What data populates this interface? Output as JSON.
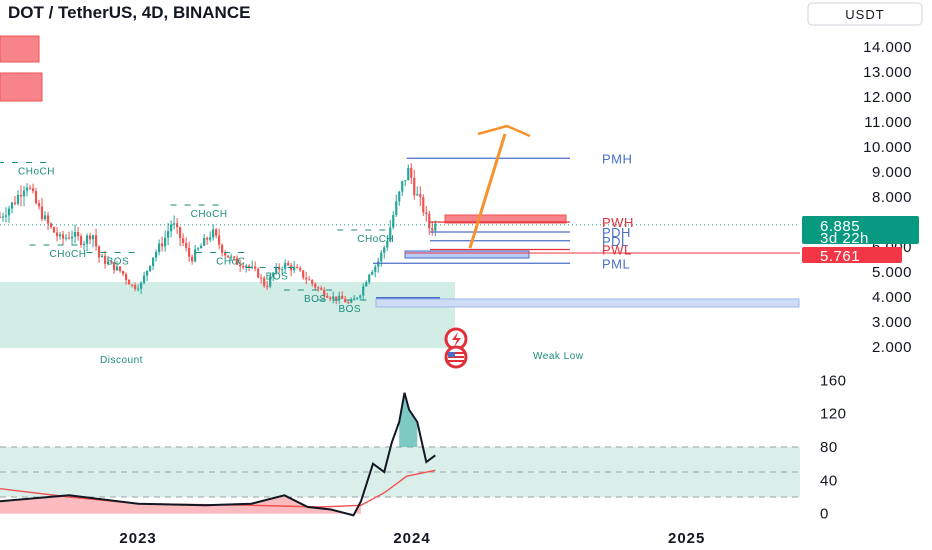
{
  "chart_data": {
    "type": "candlestick",
    "title": "DOT / TetherUS, 4D, BINANCE",
    "currency": "USDT",
    "price_axis": {
      "min": 1.0,
      "max": 15.0,
      "ticks": [
        "14.000",
        "13.000",
        "12.000",
        "11.000",
        "10.000",
        "9.000",
        "8.000",
        "7.000",
        "6.000",
        "5.000",
        "4.000",
        "3.000",
        "2.000"
      ],
      "tick_values": [
        14,
        13,
        12,
        11,
        10,
        9,
        8,
        7,
        6,
        5,
        4,
        3,
        2
      ]
    },
    "time_axis": {
      "labels": [
        "2023",
        "2024",
        "2025"
      ],
      "label_dates": [
        "2023-01-01",
        "2024-01-01",
        "2025-01-01"
      ],
      "start": "2022-07-01",
      "end": "2025-06-01"
    },
    "price_path": [
      {
        "date": "2022-07-01",
        "value": 7.2
      },
      {
        "date": "2022-07-20",
        "value": 7.8
      },
      {
        "date": "2022-08-05",
        "value": 8.6
      },
      {
        "date": "2022-08-20",
        "value": 7.6
      },
      {
        "date": "2022-09-05",
        "value": 6.8
      },
      {
        "date": "2022-09-20",
        "value": 6.3
      },
      {
        "date": "2022-10-05",
        "value": 6.5
      },
      {
        "date": "2022-10-20",
        "value": 6.2
      },
      {
        "date": "2022-11-01",
        "value": 6.6
      },
      {
        "date": "2022-11-10",
        "value": 5.6
      },
      {
        "date": "2022-11-25",
        "value": 5.3
      },
      {
        "date": "2022-12-10",
        "value": 5.0
      },
      {
        "date": "2022-12-25",
        "value": 4.4
      },
      {
        "date": "2023-01-05",
        "value": 4.5
      },
      {
        "date": "2023-01-20",
        "value": 5.6
      },
      {
        "date": "2023-02-05",
        "value": 6.3
      },
      {
        "date": "2023-02-15",
        "value": 7.0
      },
      {
        "date": "2023-03-01",
        "value": 6.2
      },
      {
        "date": "2023-03-12",
        "value": 5.5
      },
      {
        "date": "2023-03-25",
        "value": 6.0
      },
      {
        "date": "2023-04-10",
        "value": 6.6
      },
      {
        "date": "2023-04-25",
        "value": 5.8
      },
      {
        "date": "2023-05-10",
        "value": 5.4
      },
      {
        "date": "2023-05-25",
        "value": 5.3
      },
      {
        "date": "2023-06-10",
        "value": 4.9
      },
      {
        "date": "2023-06-20",
        "value": 4.4
      },
      {
        "date": "2023-07-01",
        "value": 5.0
      },
      {
        "date": "2023-07-15",
        "value": 5.3
      },
      {
        "date": "2023-07-30",
        "value": 5.1
      },
      {
        "date": "2023-08-15",
        "value": 4.7
      },
      {
        "date": "2023-08-30",
        "value": 4.3
      },
      {
        "date": "2023-09-15",
        "value": 4.0
      },
      {
        "date": "2023-10-01",
        "value": 3.9
      },
      {
        "date": "2023-10-10",
        "value": 3.7
      },
      {
        "date": "2023-10-25",
        "value": 4.2
      },
      {
        "date": "2023-11-05",
        "value": 5.0
      },
      {
        "date": "2023-11-15",
        "value": 5.3
      },
      {
        "date": "2023-11-28",
        "value": 6.2
      },
      {
        "date": "2023-12-08",
        "value": 7.4
      },
      {
        "date": "2023-12-20",
        "value": 8.6
      },
      {
        "date": "2023-12-28",
        "value": 9.1
      },
      {
        "date": "2024-01-05",
        "value": 8.2
      },
      {
        "date": "2024-01-15",
        "value": 7.6
      },
      {
        "date": "2024-01-25",
        "value": 6.7
      },
      {
        "date": "2024-02-01",
        "value": 6.9
      }
    ],
    "current_price": "6.885",
    "countdown": "3d 22h",
    "secondary_price": "5.761",
    "levels": [
      {
        "name": "PMH",
        "value": 9.55,
        "color": "#4a6fc9",
        "start": "2023-12-25",
        "end": "2024-06-15"
      },
      {
        "name": "PWH",
        "value": 7.0,
        "color": "#e0313a",
        "start": "2024-01-25",
        "end": "2024-06-15"
      },
      {
        "name": "PDH",
        "value": 6.6,
        "color": "#4a6fc9",
        "start": "2024-01-25",
        "end": "2024-06-15"
      },
      {
        "name": "PDL",
        "value": 6.25,
        "color": "#4a6fc9",
        "start": "2024-01-25",
        "end": "2024-06-15"
      },
      {
        "name": "PWL",
        "value": 5.9,
        "color": "#e0313a",
        "start": "2024-01-25",
        "end": "2024-06-15"
      },
      {
        "name": "PML",
        "value": 5.35,
        "color": "#4a6fc9",
        "start": "2023-11-10",
        "end": "2024-06-15"
      }
    ],
    "structure_labels": [
      {
        "text": "CHoCH",
        "date": "2022-07-25",
        "value": 8.9
      },
      {
        "text": "CHoCH",
        "date": "2022-09-05",
        "value": 5.6
      },
      {
        "text": "BOS",
        "date": "2022-11-20",
        "value": 5.3
      },
      {
        "text": "CHoCH",
        "date": "2023-03-12",
        "value": 7.2
      },
      {
        "text": "CHoC",
        "date": "2023-04-15",
        "value": 5.3
      },
      {
        "text": "BOS",
        "date": "2023-06-20",
        "value": 4.7
      },
      {
        "text": "CHoCH",
        "date": "2023-10-20",
        "value": 6.2
      },
      {
        "text": "BOS",
        "date": "2023-08-10",
        "value": 3.8
      },
      {
        "text": "BOS",
        "date": "2023-09-25",
        "value": 3.4
      }
    ],
    "zone_labels": {
      "discount": "Discount",
      "weak_low": "Weak Low"
    },
    "indicator": {
      "axis_ticks": [
        "160",
        "120",
        "80",
        "40",
        "0"
      ],
      "tick_values": [
        160,
        120,
        80,
        40,
        0
      ],
      "min": -10,
      "max": 170,
      "band": [
        20,
        80
      ],
      "line": [
        {
          "date": "2022-07-01",
          "value": 15
        },
        {
          "date": "2022-10-01",
          "value": 22
        },
        {
          "date": "2023-01-01",
          "value": 12
        },
        {
          "date": "2023-04-01",
          "value": 10
        },
        {
          "date": "2023-06-01",
          "value": 12
        },
        {
          "date": "2023-07-15",
          "value": 22
        },
        {
          "date": "2023-08-15",
          "value": 8
        },
        {
          "date": "2023-09-15",
          "value": 5
        },
        {
          "date": "2023-10-15",
          "value": -2
        },
        {
          "date": "2023-10-25",
          "value": 15
        },
        {
          "date": "2023-11-10",
          "value": 60
        },
        {
          "date": "2023-11-25",
          "value": 50
        },
        {
          "date": "2023-12-05",
          "value": 85
        },
        {
          "date": "2023-12-15",
          "value": 110
        },
        {
          "date": "2023-12-22",
          "value": 145
        },
        {
          "date": "2023-12-28",
          "value": 125
        },
        {
          "date": "2024-01-08",
          "value": 110
        },
        {
          "date": "2024-01-20",
          "value": 62
        },
        {
          "date": "2024-02-01",
          "value": 70
        }
      ],
      "ma": [
        {
          "date": "2022-07-01",
          "value": 30
        },
        {
          "date": "2022-10-01",
          "value": 20
        },
        {
          "date": "2023-01-01",
          "value": 12
        },
        {
          "date": "2023-06-01",
          "value": 10
        },
        {
          "date": "2023-09-01",
          "value": 8
        },
        {
          "date": "2023-10-25",
          "value": 10
        },
        {
          "date": "2023-11-25",
          "value": 25
        },
        {
          "date": "2023-12-25",
          "value": 45
        },
        {
          "date": "2024-02-01",
          "value": 52
        }
      ]
    }
  },
  "colors": {
    "up": "#26a69a",
    "down": "#ef5350",
    "discount_zone": "#cdeae3",
    "arrow": "#f7922e",
    "current_badge": "#089981",
    "secondary_badge": "#f23645"
  }
}
